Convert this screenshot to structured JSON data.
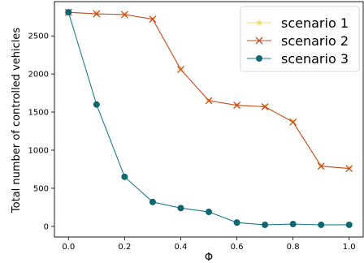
{
  "chart_data": {
    "type": "line",
    "xlabel": "Φ",
    "ylabel": "Total number of controlled vehicles",
    "xlim": [
      -0.05,
      1.05
    ],
    "ylim": [
      -140,
      2950
    ],
    "x_ticks": [
      0.0,
      0.2,
      0.4,
      0.6,
      0.8,
      1.0
    ],
    "x_tick_labels": [
      "0.0",
      "0.2",
      "0.4",
      "0.6",
      "0.8",
      "1.0"
    ],
    "y_ticks": [
      0,
      500,
      1000,
      1500,
      2000,
      2500
    ],
    "y_tick_labels": [
      "0",
      "500",
      "1000",
      "1500",
      "2000",
      "2500"
    ],
    "grid": false,
    "legend_position": "top-right",
    "x": [
      0.0,
      0.1,
      0.2,
      0.3,
      0.4,
      0.5,
      0.6,
      0.7,
      0.8,
      0.9,
      1.0
    ],
    "series": [
      {
        "name": "scenario 1",
        "marker": "star",
        "line_color": "#f5d96b",
        "marker_color": "#f5d96b",
        "values": [
          2810,
          2790,
          2780,
          2720,
          2060,
          1650,
          1590,
          1570,
          1370,
          790,
          760
        ]
      },
      {
        "name": "scenario 2",
        "marker": "x",
        "line_color": "#c84e2a",
        "marker_color": "#c84e2a",
        "values": [
          2810,
          2790,
          2780,
          2720,
          2060,
          1650,
          1590,
          1570,
          1370,
          790,
          760
        ]
      },
      {
        "name": "scenario 3",
        "marker": "circle",
        "line_color": "#1f7a8c",
        "marker_color": "#0e6770",
        "values": [
          2810,
          1600,
          650,
          320,
          240,
          190,
          50,
          20,
          30,
          20,
          20
        ]
      }
    ]
  }
}
